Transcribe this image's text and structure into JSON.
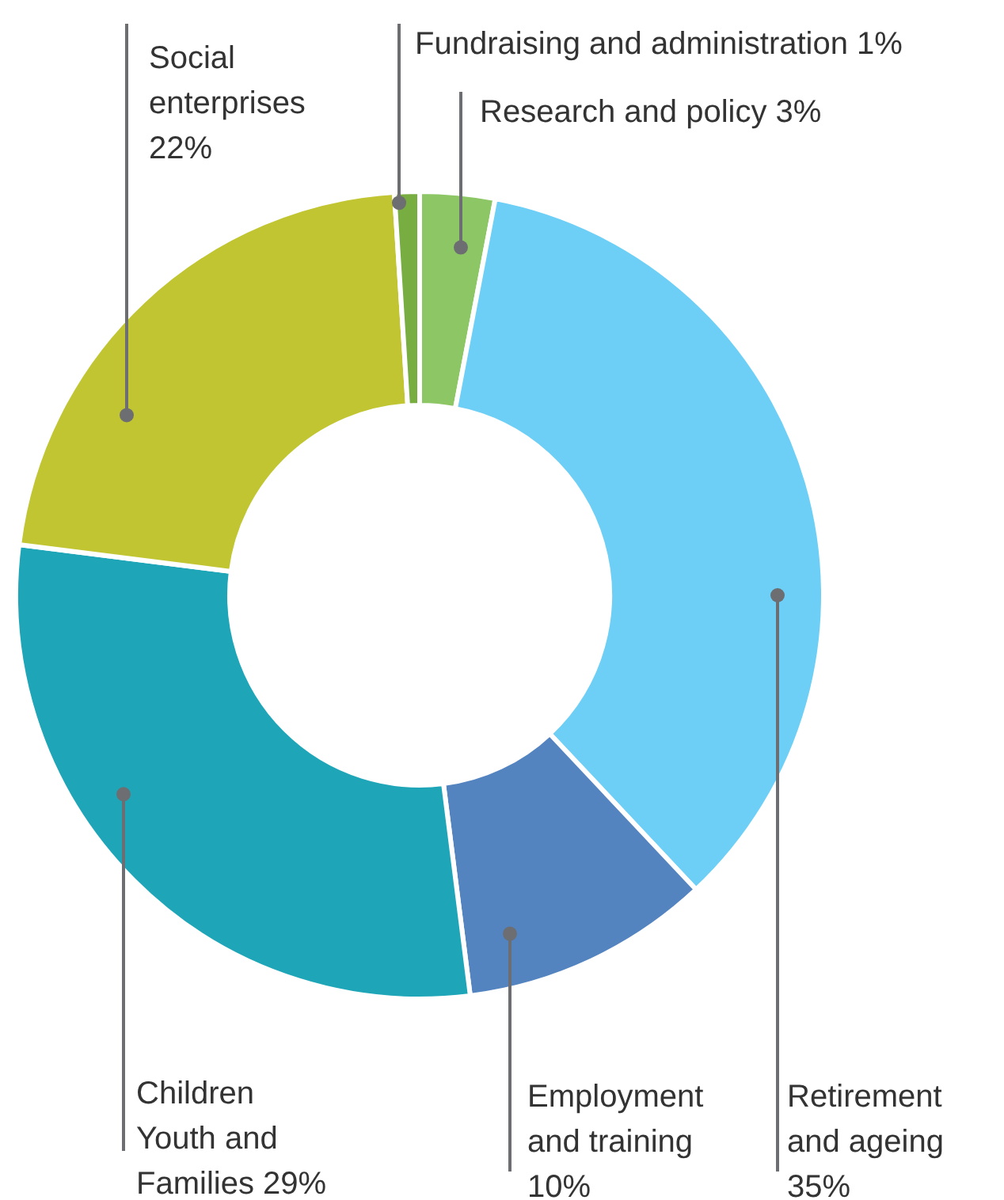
{
  "chart_data": {
    "type": "donut",
    "categories": [
      "Research and policy",
      "Retirement and ageing",
      "Employment and training",
      "Children Youth and Families",
      "Social enterprises",
      "Fundraising and administration"
    ],
    "values": [
      3,
      35,
      10,
      29,
      22,
      1
    ],
    "value_labels": [
      "3%",
      "35%",
      "10%",
      "29%",
      "22%",
      "1%"
    ],
    "colors": [
      "#8cc665",
      "#6dcff6",
      "#5384c0",
      "#1ea6b8",
      "#c1c531",
      "#78ad42"
    ]
  }
}
